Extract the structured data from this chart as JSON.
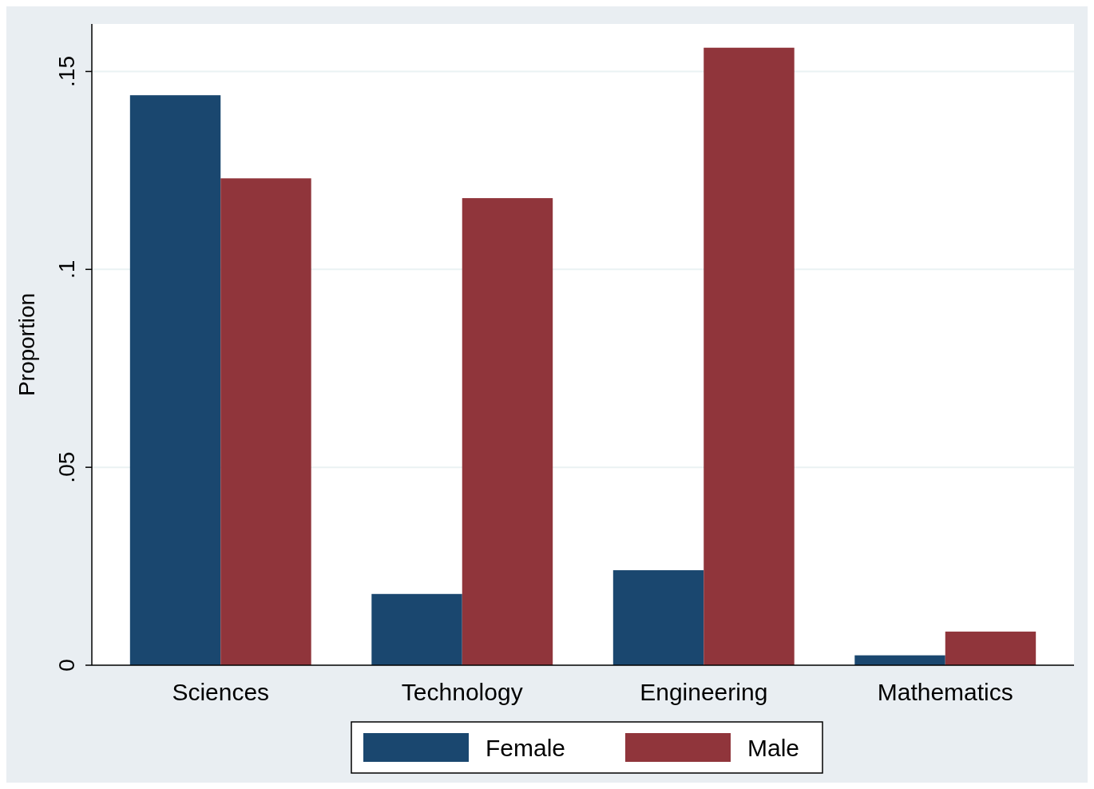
{
  "chart_data": {
    "type": "bar",
    "ylabel": "Proportion",
    "categories": [
      "Sciences",
      "Technology",
      "Engineering",
      "Mathematics"
    ],
    "series": [
      {
        "name": "Female",
        "color": "#1a476f",
        "values": [
          0.144,
          0.018,
          0.024,
          0.0025
        ]
      },
      {
        "name": "Male",
        "color": "#90353b",
        "values": [
          0.123,
          0.118,
          0.156,
          0.0085
        ]
      }
    ],
    "ylim": [
      0,
      0.162
    ],
    "yticks": [
      {
        "value": 0,
        "label": "0"
      },
      {
        "value": 0.05,
        "label": ".05"
      },
      {
        "value": 0.1,
        "label": ".1"
      },
      {
        "value": 0.15,
        "label": ".15"
      }
    ],
    "grid": "y",
    "legend": "bottom"
  }
}
